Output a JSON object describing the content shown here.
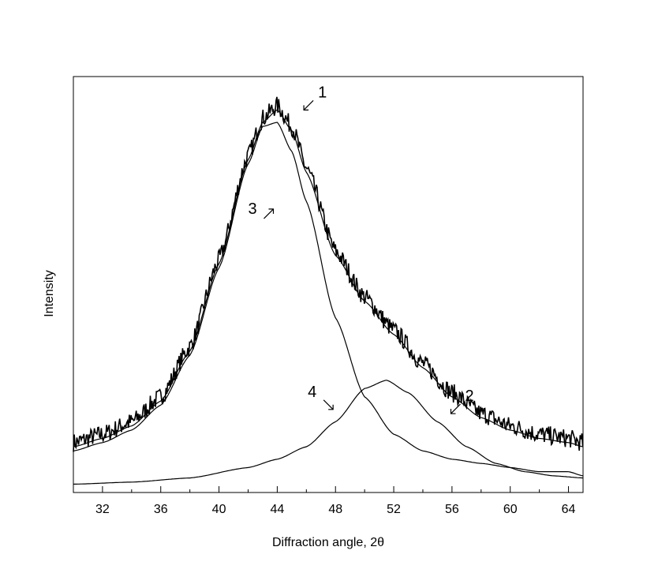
{
  "chart_data": {
    "type": "line",
    "title": "",
    "xlabel": "Diffraction angle, 2θ",
    "ylabel": "Intensity",
    "xlim": [
      30,
      65
    ],
    "ylim": [
      0,
      1
    ],
    "y_ticks_shown": false,
    "grid": false,
    "legend": "none",
    "x_ticks": [
      32,
      36,
      40,
      44,
      48,
      52,
      56,
      60,
      64
    ],
    "x_tick_labels": [
      "32",
      "36",
      "40",
      "44",
      "48",
      "52",
      "56",
      "60",
      "64"
    ],
    "series": [
      {
        "id": "1",
        "style": "noisy experimental pattern",
        "x": [
          30,
          32,
          34,
          36,
          38,
          40,
          42,
          43,
          44,
          45,
          46,
          48,
          50,
          52,
          54,
          56,
          58,
          60,
          62,
          64,
          65
        ],
        "y": [
          0.12,
          0.14,
          0.17,
          0.23,
          0.35,
          0.56,
          0.81,
          0.9,
          0.93,
          0.88,
          0.78,
          0.58,
          0.47,
          0.39,
          0.31,
          0.24,
          0.19,
          0.16,
          0.14,
          0.13,
          0.12
        ]
      },
      {
        "id": "2",
        "style": "fitted sum curve",
        "x": [
          30,
          32,
          34,
          36,
          38,
          40,
          42,
          43,
          44,
          45,
          46,
          48,
          50,
          52,
          54,
          56,
          58,
          60,
          62,
          64,
          65
        ],
        "y": [
          0.11,
          0.13,
          0.16,
          0.22,
          0.34,
          0.55,
          0.8,
          0.89,
          0.92,
          0.87,
          0.77,
          0.57,
          0.46,
          0.38,
          0.3,
          0.23,
          0.18,
          0.15,
          0.13,
          0.12,
          0.11
        ]
      },
      {
        "id": "3",
        "style": "component peak",
        "x": [
          30,
          32,
          34,
          36,
          38,
          40,
          42,
          43,
          44,
          45,
          46,
          48,
          50,
          52,
          54,
          56,
          58,
          60,
          62,
          64,
          65
        ],
        "y": [
          0.1,
          0.12,
          0.15,
          0.21,
          0.33,
          0.54,
          0.79,
          0.88,
          0.89,
          0.82,
          0.7,
          0.42,
          0.23,
          0.14,
          0.1,
          0.08,
          0.07,
          0.06,
          0.05,
          0.05,
          0.04
        ]
      },
      {
        "id": "4",
        "style": "component peak",
        "x": [
          30,
          34,
          38,
          42,
          44,
          46,
          48,
          50,
          51.5,
          53,
          55,
          57,
          59,
          61,
          63,
          65
        ],
        "y": [
          0.02,
          0.025,
          0.035,
          0.06,
          0.08,
          0.11,
          0.17,
          0.25,
          0.27,
          0.24,
          0.17,
          0.11,
          0.07,
          0.05,
          0.04,
          0.035
        ]
      }
    ],
    "annotations": [
      {
        "text": "1",
        "x": 46.8,
        "y": 0.95
      },
      {
        "text": "3",
        "x": 42.0,
        "y": 0.67
      },
      {
        "text": "4",
        "x": 46.1,
        "y": 0.23
      },
      {
        "text": "2",
        "x": 56.9,
        "y": 0.22
      }
    ]
  }
}
